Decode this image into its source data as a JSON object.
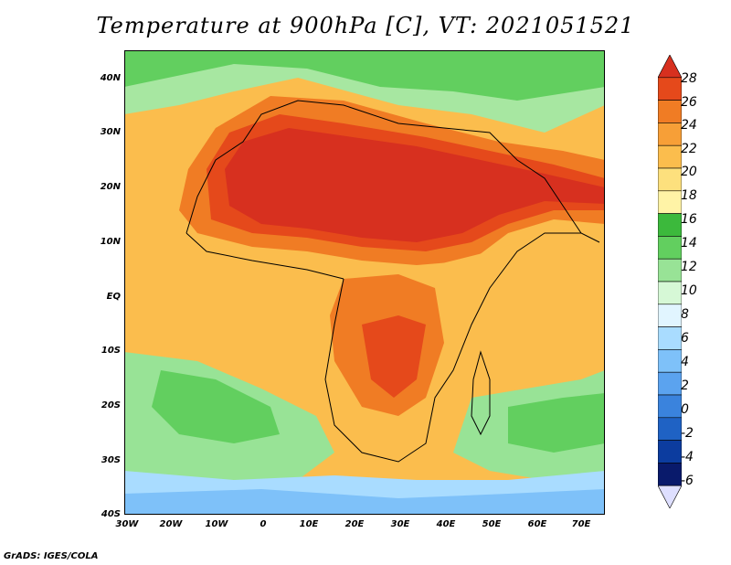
{
  "title": "Temperature at 900hPa [C], VT: 2021051521",
  "credit": "GrADS: IGES/COLA",
  "lat_labels": [
    "40N",
    "30N",
    "20N",
    "10N",
    "EQ",
    "10S",
    "20S",
    "30S",
    "40S"
  ],
  "lon_labels": [
    "30W",
    "20W",
    "10W",
    "0",
    "10E",
    "20E",
    "30E",
    "40E",
    "50E",
    "60E",
    "70E"
  ],
  "colorbar": {
    "labels": [
      "28",
      "26",
      "24",
      "22",
      "20",
      "18",
      "16",
      "14",
      "12",
      "10",
      "8",
      "6",
      "4",
      "2",
      "0",
      "-2",
      "-4",
      "-6"
    ],
    "colors": [
      "#d7301f",
      "#e5491b",
      "#f07c24",
      "#f79f37",
      "#fbbd4d",
      "#fde07d",
      "#fff3a6",
      "#3cb93c",
      "#62cf5f",
      "#98e396",
      "#d6f8d6",
      "#e1f5ff",
      "#a9dcff",
      "#7ec1f9",
      "#5ba3ef",
      "#3a83dd",
      "#1f62c4",
      "#0c3c9f",
      "#091a6b",
      "#dedfff"
    ]
  },
  "map": {
    "variable": "Temperature at 900hPa",
    "units": "C",
    "valid_time": "2021051521",
    "domain": {
      "lon": [
        -30,
        75
      ],
      "lat": [
        -40,
        45
      ]
    }
  }
}
